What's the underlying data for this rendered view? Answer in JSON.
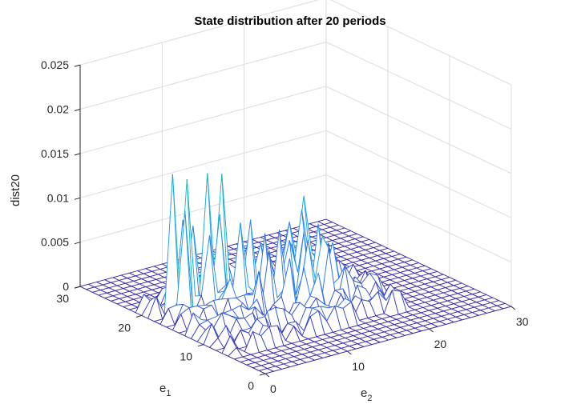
{
  "chart_data": {
    "type": "surface-mesh",
    "title": "State distribution after 20 periods",
    "xlabel": {
      "base": "e",
      "sub": "1"
    },
    "ylabel": {
      "base": "e",
      "sub": "2"
    },
    "zlabel": "dist20",
    "xlim": [
      0,
      30
    ],
    "ylim": [
      0,
      30
    ],
    "zlim": [
      0,
      0.025
    ],
    "x_ticks": [
      "0",
      "10",
      "20",
      "30"
    ],
    "y_ticks": [
      "0",
      "10",
      "20",
      "30"
    ],
    "z_ticks": [
      "0",
      "0.005",
      "0.01",
      "0.015",
      "0.02",
      "0.025"
    ],
    "grid": true,
    "colormap": [
      "#3e26a8",
      "#2e87f7",
      "#1ab2d5",
      "#24c5b8",
      "#81cc59",
      "#d8ba33",
      "#f9fb15"
    ],
    "peaks": [
      {
        "e1": 19,
        "e2": 3,
        "z": 0.0155
      },
      {
        "e1": 18,
        "e2": 4,
        "z": 0.015
      },
      {
        "e1": 17,
        "e2": 3,
        "z": 0.012
      },
      {
        "e1": 20,
        "e2": 5,
        "z": 0.0095
      },
      {
        "e1": 20,
        "e2": 8,
        "z": 0.014
      },
      {
        "e1": 19,
        "e2": 9,
        "z": 0.014
      },
      {
        "e1": 18,
        "e2": 8,
        "z": 0.01
      },
      {
        "e1": 21,
        "e2": 7,
        "z": 0.008
      },
      {
        "e1": 17,
        "e2": 6,
        "z": 0.0085
      },
      {
        "e1": 16,
        "e2": 9,
        "z": 0.0095
      },
      {
        "e1": 17,
        "e2": 11,
        "z": 0.009
      },
      {
        "e1": 15,
        "e2": 13,
        "z": 0.008
      },
      {
        "e1": 16,
        "e2": 12,
        "z": 0.0075
      },
      {
        "e1": 14,
        "e2": 11,
        "z": 0.0065
      },
      {
        "e1": 13,
        "e2": 15,
        "z": 0.007
      },
      {
        "e1": 12,
        "e2": 16,
        "z": 0.0075
      },
      {
        "e1": 11,
        "e2": 16,
        "z": 0.0065
      },
      {
        "e1": 14,
        "e2": 17,
        "z": 0.008
      },
      {
        "e1": 15,
        "e2": 16,
        "z": 0.007
      },
      {
        "e1": 16,
        "e2": 15,
        "z": 0.006
      },
      {
        "e1": 13,
        "e2": 18,
        "z": 0.006
      },
      {
        "e1": 15,
        "e2": 19,
        "z": 0.005
      },
      {
        "e1": 19,
        "e2": 19,
        "z": 0.009
      },
      {
        "e1": 18,
        "e2": 18,
        "z": 0.008
      },
      {
        "e1": 20,
        "e2": 18,
        "z": 0.006
      },
      {
        "e1": 12,
        "e2": 12,
        "z": 0.006
      },
      {
        "e1": 11,
        "e2": 13,
        "z": 0.005
      },
      {
        "e1": 10,
        "e2": 14,
        "z": 0.0045
      },
      {
        "e1": 18,
        "e2": 13,
        "z": 0.0055
      },
      {
        "e1": 13,
        "e2": 9,
        "z": 0.005
      },
      {
        "e1": 19,
        "e2": 12,
        "z": 0.005
      },
      {
        "e1": 17,
        "e2": 16,
        "z": 0.005
      },
      {
        "e1": 11,
        "e2": 18,
        "z": 0.004
      },
      {
        "e1": 15,
        "e2": 7,
        "z": 0.004
      }
    ],
    "support": {
      "e1": [
        6,
        22
      ],
      "e2": [
        1,
        22
      ]
    },
    "grid_size": 31
  }
}
